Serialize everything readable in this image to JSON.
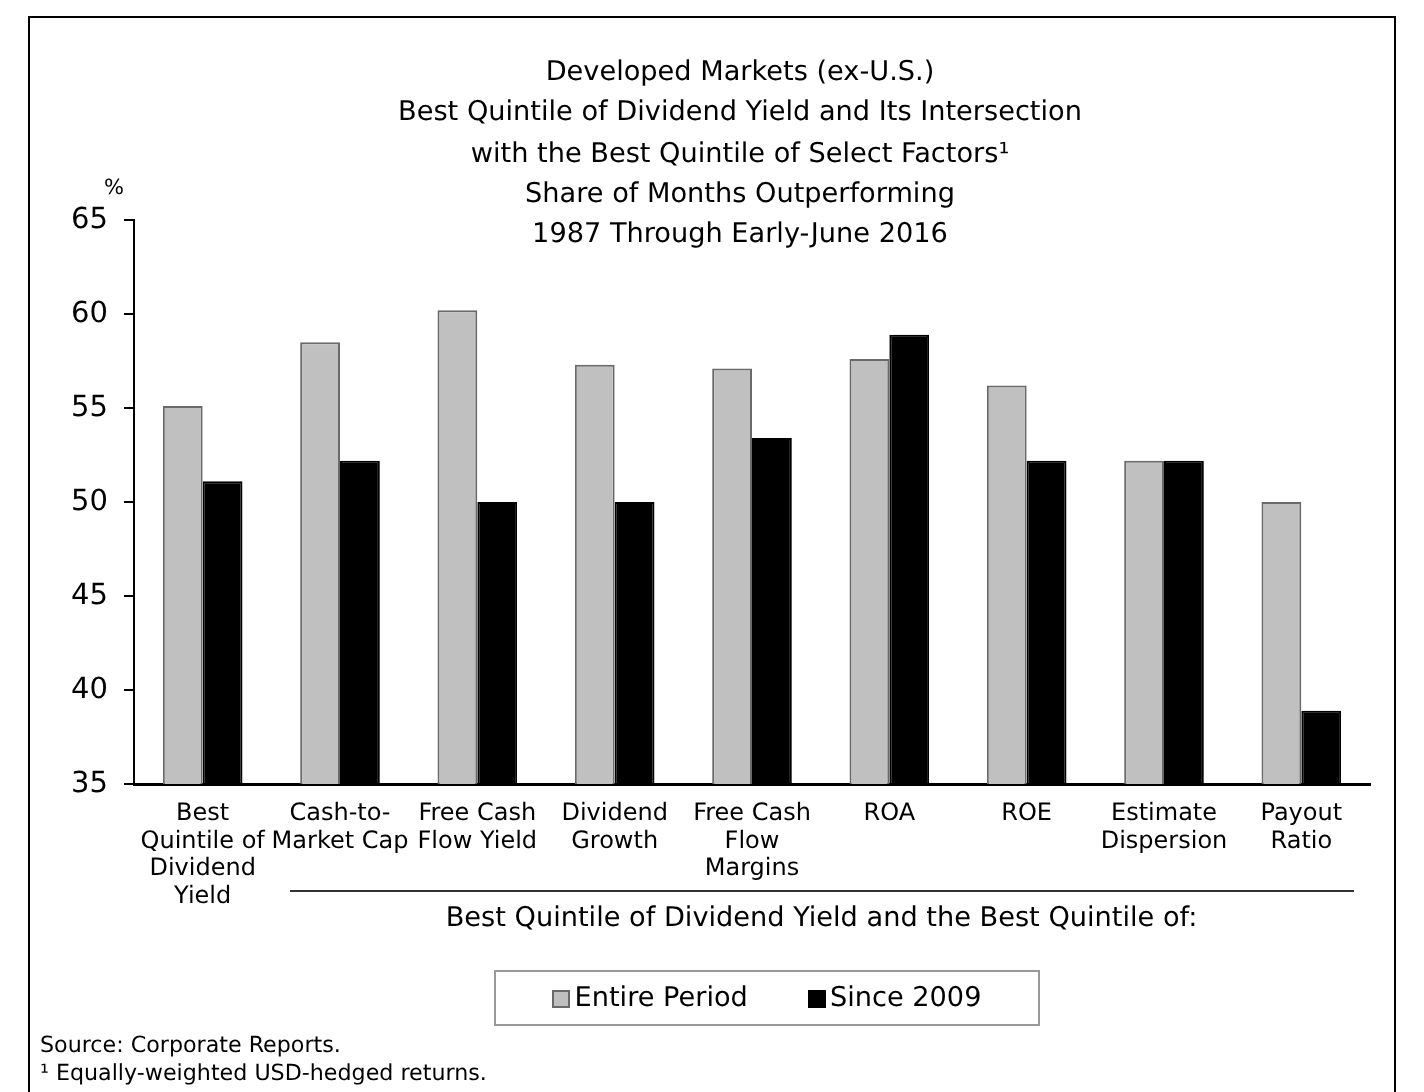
{
  "chart_data": {
    "type": "bar",
    "title": "Developed Markets (ex-U.S.)\nBest Quintile of Dividend Yield and Its Intersection\nwith the Best Quintile of Select Factors¹",
    "subtitle": "Share of Months Outperforming\n1987 Through Early-June 2016",
    "ylabel": "%",
    "xlabel": "Best Quintile of Dividend Yield and the Best Quintile of:",
    "categories": [
      "Best Quintile of Dividend Yield",
      "Cash-to-Market Cap",
      "Free Cash Flow Yield",
      "Dividend Growth",
      "Free Cash Flow Margins",
      "ROA",
      "ROE",
      "Estimate Dispersion",
      "Payout Ratio"
    ],
    "series": [
      {
        "name": "Entire Period",
        "color": "#c0c0c0",
        "values": [
          55.1,
          58.5,
          60.2,
          57.3,
          57.1,
          57.6,
          56.2,
          52.2,
          50.0
        ]
      },
      {
        "name": "Since 2009",
        "color": "#000000",
        "values": [
          51.1,
          52.2,
          50.0,
          50.0,
          53.4,
          58.9,
          52.2,
          52.2,
          38.9
        ]
      }
    ],
    "ylim": [
      35,
      65
    ],
    "yticks": [
      35,
      40,
      45,
      50,
      55,
      60,
      65
    ],
    "grid": false,
    "legend": "bottom",
    "annotations": [
      "Source: Corporate Reports.",
      "¹ Equally-weighted USD-hedged returns."
    ]
  }
}
